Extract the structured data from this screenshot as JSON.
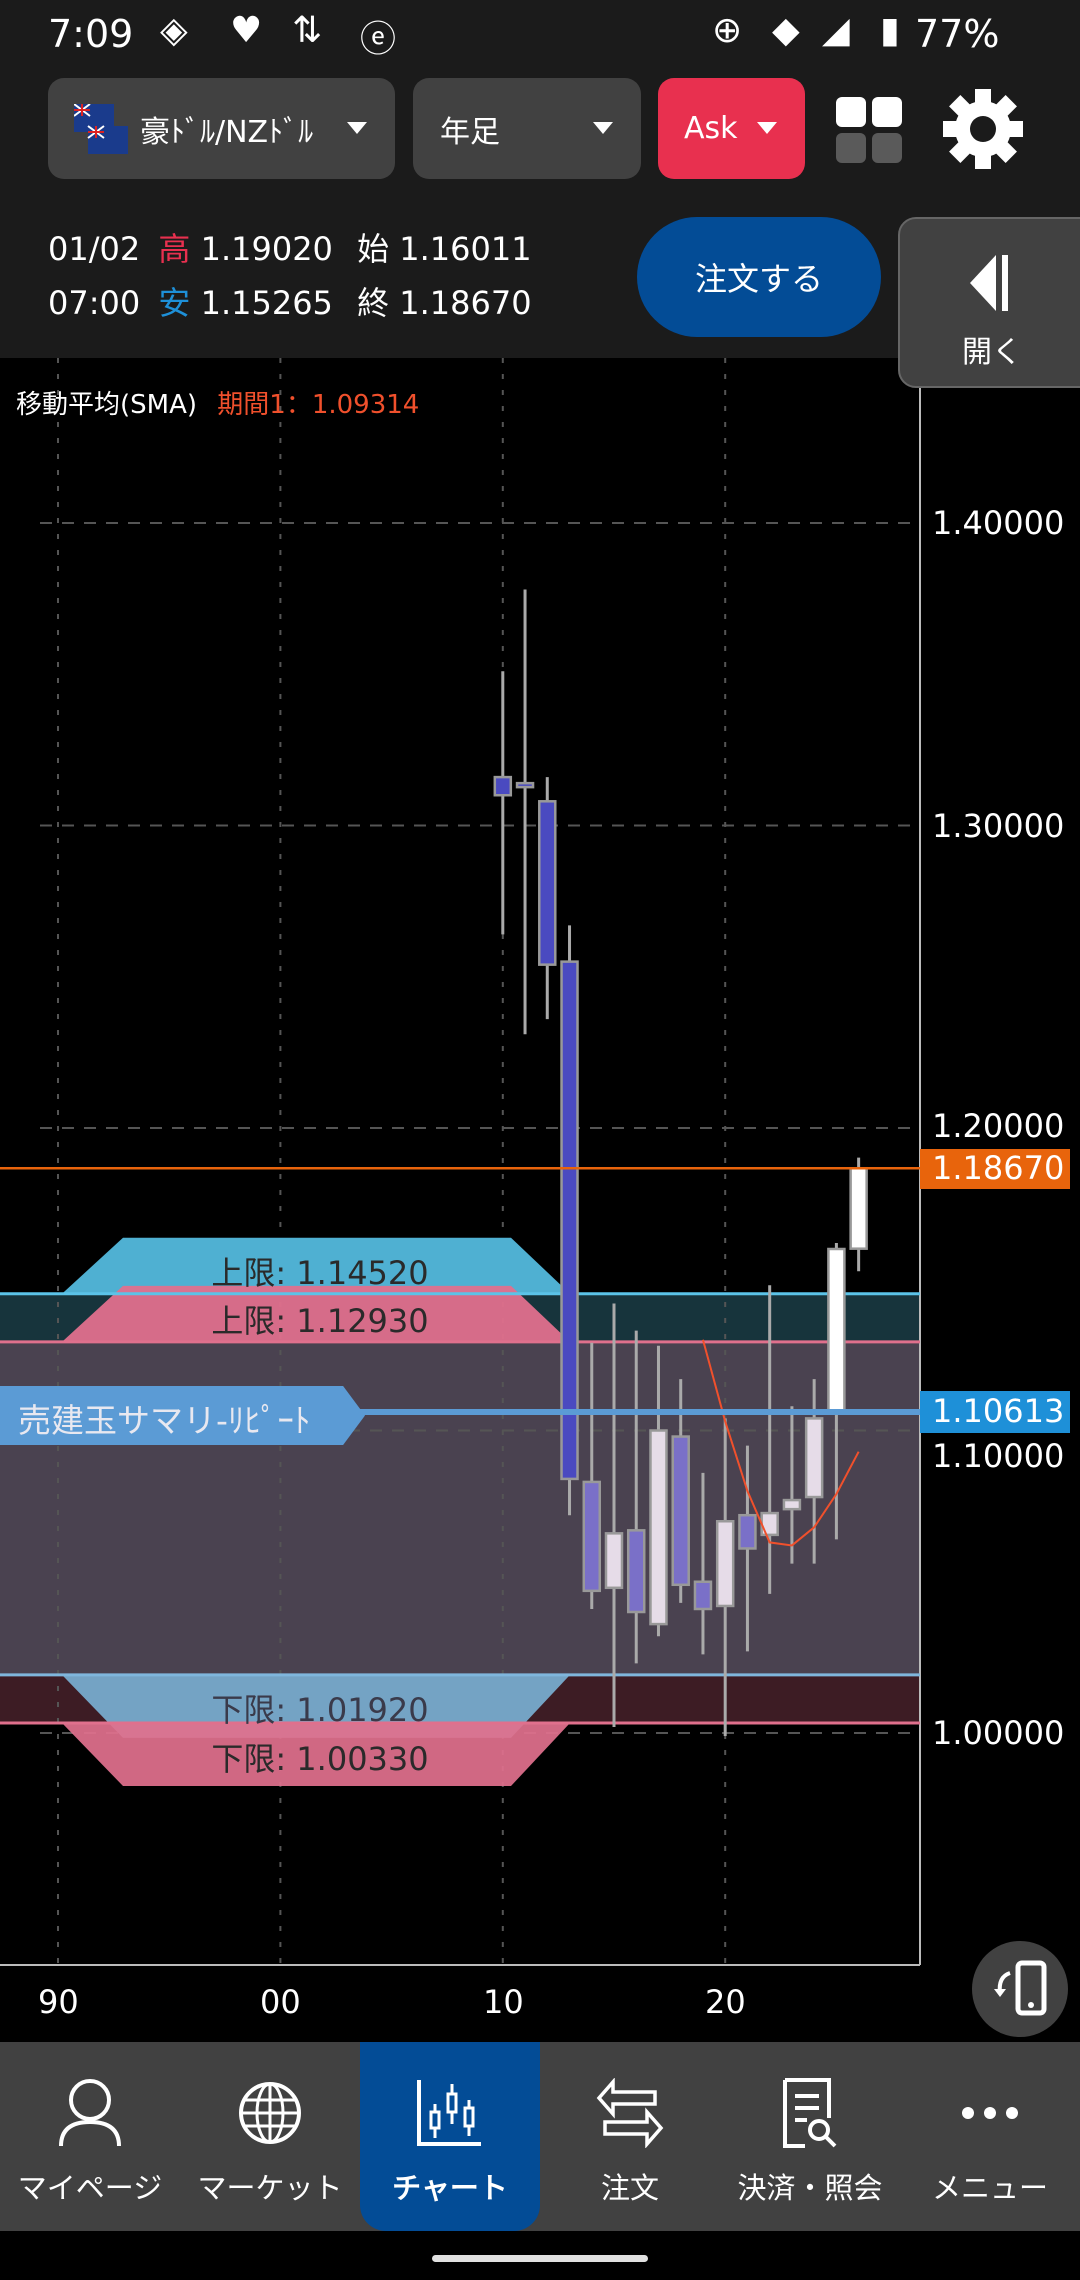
{
  "status_bar": {
    "time": "7:09",
    "battery": "77%"
  },
  "toolbar": {
    "pair": "豪ﾄﾞﾙ/NZﾄﾞﾙ",
    "timeframe": "年足",
    "price_side": "Ask",
    "ask_color": "#e8304f"
  },
  "ohlc_info": {
    "date": "01/02",
    "time": "07:00",
    "high_label": "高",
    "high": "1.19020",
    "low_label": "安",
    "low": "1.15265",
    "open_label": "始",
    "open": "1.16011",
    "close_label": "終",
    "close": "1.18670"
  },
  "order_button": "注文する",
  "open_panel": "開く",
  "indicator": {
    "name": "移動平均(SMA)",
    "period_label": "期間1：1.09314",
    "color": "#f0502c"
  },
  "position_label": "売建玉サマリ-ﾘﾋﾟｰﾄ",
  "bands": {
    "upper_a": "上限: 1.14520",
    "upper_b": "上限: 1.12930",
    "lower_a": "下限: 1.01920",
    "lower_b": "下限: 1.00330"
  },
  "price_tags": {
    "current": "1.18670",
    "position": "1.10613"
  },
  "y_ticks": [
    "1.40000",
    "1.30000",
    "1.20000",
    "1.10000",
    "1.00000"
  ],
  "x_ticks": [
    "90",
    "00",
    "10",
    "20"
  ],
  "chart_data": {
    "type": "candlestick",
    "ylim": [
      0.93,
      1.45
    ],
    "years": [
      2010,
      2011,
      2012,
      2013,
      2014,
      2015,
      2016,
      2017,
      2018,
      2019,
      2020,
      2021,
      2022,
      2023,
      2024,
      2025,
      2026
    ],
    "open": [
      1.316,
      1.314,
      1.308,
      1.255,
      1.083,
      1.048,
      1.067,
      1.036,
      1.098,
      1.05,
      1.042,
      1.072,
      1.0655,
      1.074,
      1.078,
      1.106,
      1.16011
    ],
    "high": [
      1.351,
      1.378,
      1.316,
      1.267,
      1.129,
      1.142,
      1.133,
      1.128,
      1.117,
      1.086,
      1.104,
      1.095,
      1.148,
      1.108,
      1.117,
      1.162,
      1.1902
    ],
    "low": [
      1.264,
      1.231,
      1.236,
      1.072,
      1.041,
      1.002,
      1.023,
      1.032,
      1.043,
      1.026,
      0.999,
      1.027,
      1.046,
      1.056,
      1.056,
      1.064,
      1.15265
    ],
    "close": [
      1.31,
      1.313,
      1.254,
      1.084,
      1.047,
      1.066,
      1.04,
      1.1,
      1.049,
      1.041,
      1.07,
      1.061,
      1.0727,
      1.077,
      1.104,
      1.16,
      1.1867
    ],
    "sma": {
      "years": [
        2019,
        2020,
        2021,
        2022,
        2023,
        2024,
        2025,
        2026
      ],
      "values": [
        1.13,
        1.103,
        1.08,
        1.063,
        1.062,
        1.068,
        1.079,
        1.093
      ]
    },
    "levels": {
      "upper_a": 1.1452,
      "upper_b": 1.1293,
      "lower_a": 1.0192,
      "lower_b": 1.0033,
      "position": 1.10613,
      "current": 1.1867
    },
    "y_grid": [
      1.4,
      1.3,
      1.2,
      1.1,
      1.0
    ],
    "x_grid_years": [
      1990,
      2000,
      2010,
      2020
    ],
    "bull_color": "#ffffff",
    "bear_color": "#4a4ac0",
    "current_color": "#e8640c",
    "position_color": "#5b9bd5"
  },
  "nav": [
    {
      "label": "マイページ",
      "icon": "person-icon"
    },
    {
      "label": "マーケット",
      "icon": "globe-icon"
    },
    {
      "label": "チャート",
      "icon": "candlestick-chart-icon"
    },
    {
      "label": "注文",
      "icon": "exchange-arrows-icon"
    },
    {
      "label": "決済・照会",
      "icon": "document-search-icon"
    },
    {
      "label": "メニュー",
      "icon": "more-dots-icon"
    }
  ]
}
